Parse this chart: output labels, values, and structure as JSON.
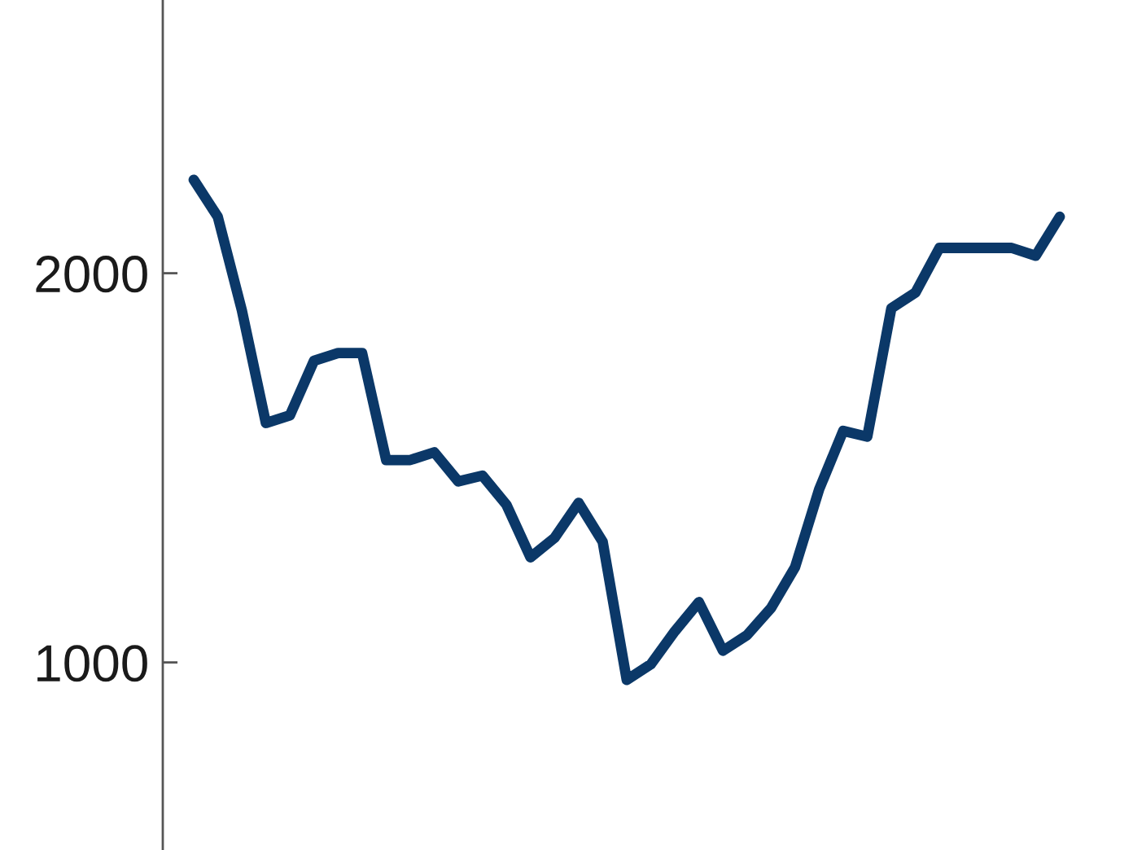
{
  "chart_data": {
    "type": "line",
    "categories": [
      null,
      null,
      null,
      null,
      null,
      null,
      null,
      null,
      null,
      null,
      null,
      null,
      null,
      null,
      null,
      null,
      null,
      null,
      null,
      null,
      null,
      null,
      null,
      null,
      null,
      null,
      null,
      null,
      null,
      null,
      null,
      null,
      null,
      null,
      null,
      null,
      null
    ],
    "series": [
      {
        "color": "#0b3868",
        "values": [
          2240,
          2145,
          1905,
          1615,
          1635,
          1775,
          1795,
          1795,
          1520,
          1520,
          1540,
          1465,
          1480,
          1405,
          1270,
          1320,
          1410,
          1310,
          955,
          995,
          1080,
          1155,
          1030,
          1070,
          1140,
          1245,
          1445,
          1595,
          1580,
          1910,
          1950,
          2065,
          2065,
          2065,
          2065,
          2045,
          2145
        ]
      }
    ],
    "ylim": [
      518,
      2702
    ],
    "yticks": [
      1000,
      2000
    ],
    "tick_labels": "y",
    "grid": false,
    "marker": "none",
    "line_style": "solid"
  }
}
